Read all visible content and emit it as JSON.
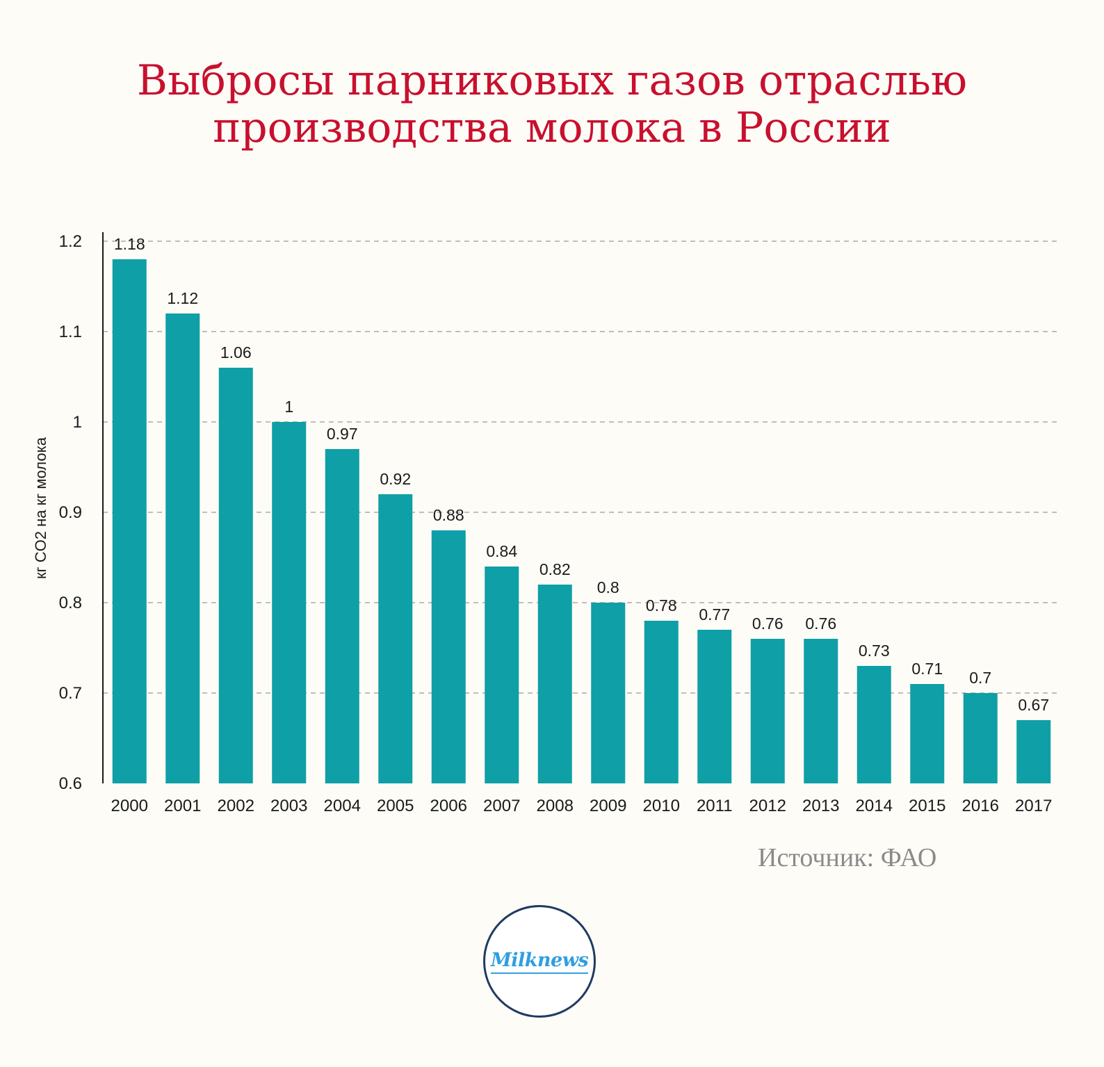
{
  "title_lines": [
    "Выбросы парниковых газов отраслью",
    "производства молока в России"
  ],
  "source": "Источник: ФАО",
  "logo_text": "Milknews",
  "colors": {
    "bar": "#0f9fa6",
    "title": "#c8102e",
    "grid": "#a9a9a9"
  },
  "chart_data": {
    "type": "bar",
    "title": "Выбросы парниковых газов отраслью производства молока в России",
    "xlabel": "",
    "ylabel": "кг CO2 на кг молока",
    "categories": [
      "2000",
      "2001",
      "2002",
      "2003",
      "2004",
      "2005",
      "2006",
      "2007",
      "2008",
      "2009",
      "2010",
      "2011",
      "2012",
      "2013",
      "2014",
      "2015",
      "2016",
      "2017"
    ],
    "values": [
      1.18,
      1.12,
      1.06,
      1,
      0.97,
      0.92,
      0.88,
      0.84,
      0.82,
      0.8,
      0.78,
      0.77,
      0.76,
      0.76,
      0.73,
      0.71,
      0.7,
      0.67
    ],
    "value_labels": [
      "1.18",
      "1.12",
      "1.06",
      "1",
      "0.97",
      "0.92",
      "0.88",
      "0.84",
      "0.82",
      "0.8",
      "0.78",
      "0.77",
      "0.76",
      "0.76",
      "0.73",
      "0.71",
      "0.7",
      "0.67"
    ],
    "ylim": [
      0.6,
      1.2
    ],
    "yticks": [
      "0.6",
      "0.7",
      "0.8",
      "0.9",
      "1",
      "1.1",
      "1.2"
    ],
    "grid": true,
    "legend": "none"
  }
}
